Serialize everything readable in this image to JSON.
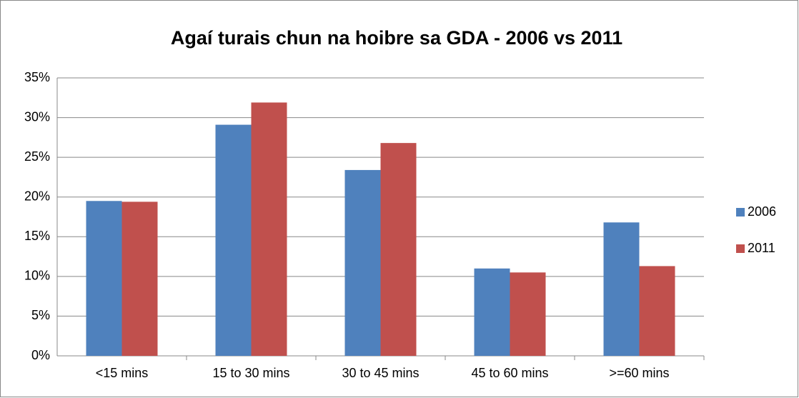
{
  "chart_data": {
    "type": "bar",
    "title": "Agaí turais chun na hoibre sa GDA - 2006 vs 2011",
    "categories": [
      "<15 mins",
      "15 to 30 mins",
      "30 to 45 mins",
      "45 to 60 mins",
      ">=60 mins"
    ],
    "series": [
      {
        "name": "2006",
        "color": "#4f81bd",
        "values": [
          19.5,
          29.1,
          23.4,
          11.0,
          16.8
        ]
      },
      {
        "name": "2011",
        "color": "#c0504d",
        "values": [
          19.4,
          31.9,
          26.8,
          10.5,
          11.3
        ]
      }
    ],
    "ylim": [
      0,
      35
    ],
    "yticks": [
      {
        "value": 0,
        "label": "0%"
      },
      {
        "value": 5,
        "label": "5%"
      },
      {
        "value": 10,
        "label": "10%"
      },
      {
        "value": 15,
        "label": "15%"
      },
      {
        "value": 20,
        "label": "20%"
      },
      {
        "value": 25,
        "label": "25%"
      },
      {
        "value": 30,
        "label": "30%"
      },
      {
        "value": 35,
        "label": "35%"
      }
    ],
    "grid": true,
    "legend": "right"
  }
}
